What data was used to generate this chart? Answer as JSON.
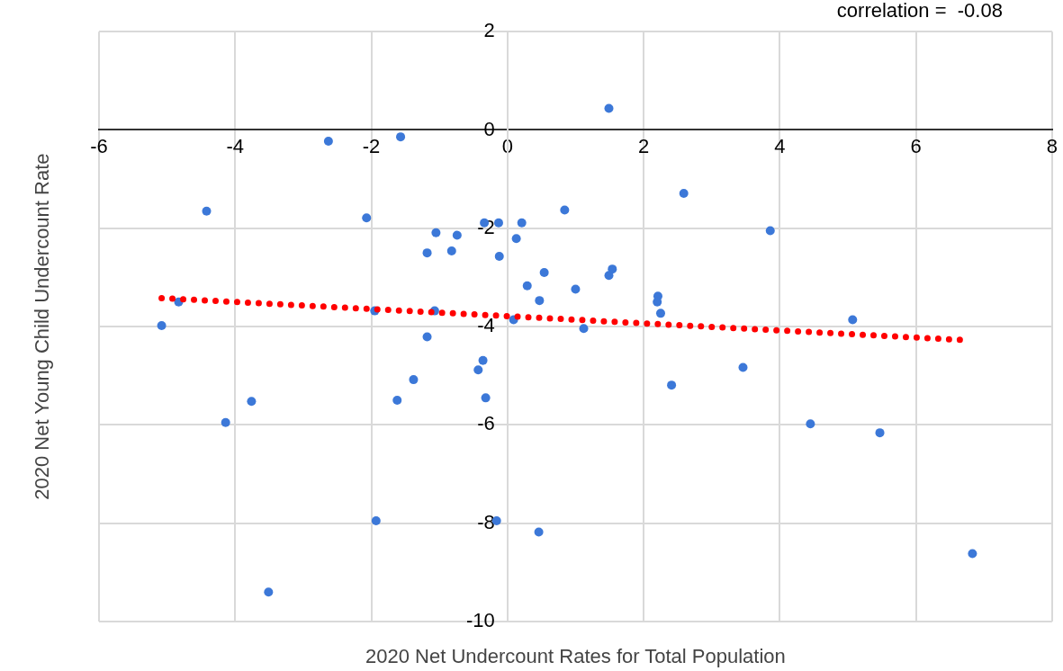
{
  "chart_data": {
    "type": "scatter",
    "xlabel": "2020 Net Undercount Rates for Total Population",
    "ylabel": "2020 Net Young Child Undercount Rate",
    "annotations": [
      "correlation =  -0.08"
    ],
    "xlim": [
      -6,
      8
    ],
    "xticks": [
      -6,
      -4,
      -2,
      0,
      2,
      4,
      6,
      8
    ],
    "ylim": [
      -10,
      2
    ],
    "yticks": [
      -10,
      -8,
      -6,
      -4,
      -2,
      0,
      2
    ],
    "grid": true,
    "legend": false,
    "marker": "circle",
    "series": [
      {
        "type": "scatter",
        "color": "#3c78d8",
        "x": [
          1.49,
          -2.63,
          -1.57,
          -4.42,
          -2.07,
          2.59,
          0.84,
          3.86,
          -1.05,
          -0.74,
          -0.34,
          -0.13,
          0.21,
          0.13,
          -1.18,
          -0.82,
          -0.12,
          0.54,
          1.54,
          1.49,
          0.29,
          1.0,
          0.47,
          2.21,
          2.2,
          2.25,
          -4.83,
          -5.08,
          -1.95,
          -1.07,
          0.09,
          1.12,
          5.07,
          -1.18,
          -0.36,
          -0.43,
          3.46,
          -1.38,
          2.41,
          -0.32,
          -1.62,
          -3.76,
          -4.14,
          4.45,
          5.47,
          -1.93,
          -0.16,
          0.46,
          6.83,
          -3.51
        ],
        "values": [
          0.44,
          -0.23,
          -0.14,
          -1.65,
          -1.79,
          -1.29,
          -1.63,
          -2.05,
          -2.09,
          -2.14,
          -1.89,
          -1.89,
          -1.89,
          -2.21,
          -2.5,
          -2.46,
          -2.57,
          -2.9,
          -2.83,
          -2.96,
          -3.17,
          -3.24,
          -3.47,
          -3.38,
          -3.5,
          -3.73,
          -3.5,
          -3.98,
          -3.68,
          -3.68,
          -3.86,
          -4.04,
          -3.86,
          -4.21,
          -4.69,
          -4.88,
          -4.83,
          -5.08,
          -5.19,
          -5.45,
          -5.5,
          -5.52,
          -5.95,
          -5.98,
          -6.16,
          -7.95,
          -7.95,
          -8.18,
          -8.62,
          -9.4
        ]
      },
      {
        "type": "line",
        "color": "#ff0000",
        "line_style": "dotted",
        "marker": "none",
        "x": [
          -5.08,
          6.65
        ],
        "values": [
          -3.42,
          -4.27
        ]
      }
    ]
  }
}
